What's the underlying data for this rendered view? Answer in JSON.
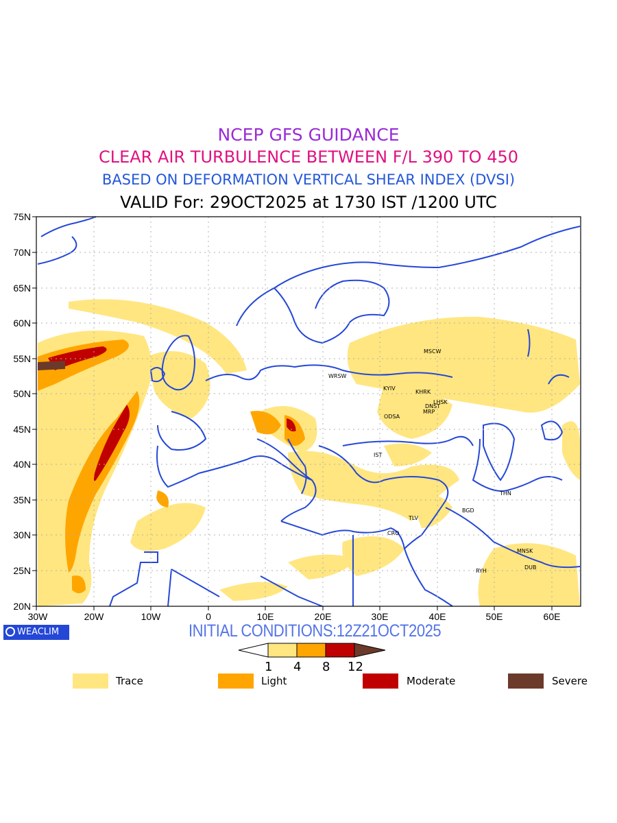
{
  "title_lines": {
    "line1": "NCEP GFS GUIDANCE",
    "line2": "CLEAR AIR TURBULENCE BETWEEN F/L 390 TO 450",
    "line3": "BASED ON DEFORMATION VERTICAL SHEAR INDEX (DVSI)",
    "line4": "VALID For: 29OCT2025 at 1730 IST /1200 UTC"
  },
  "lat_labels": [
    "75N",
    "70N",
    "65N",
    "60N",
    "55N",
    "50N",
    "45N",
    "40N",
    "35N",
    "30N",
    "25N",
    "20N"
  ],
  "lon_labels": [
    "30W",
    "20W",
    "10W",
    "0",
    "10E",
    "20E",
    "30E",
    "40E",
    "50E",
    "60E"
  ],
  "cities": [
    {
      "name": "MSCW"
    },
    {
      "name": "WRSW"
    },
    {
      "name": "KYIV"
    },
    {
      "name": "KHRK"
    },
    {
      "name": "LHSK"
    },
    {
      "name": "DNST"
    },
    {
      "name": "MRP"
    },
    {
      "name": "ODSA"
    },
    {
      "name": "IST"
    },
    {
      "name": "THN"
    },
    {
      "name": "BGD"
    },
    {
      "name": "TLV"
    },
    {
      "name": "CRO"
    },
    {
      "name": "MNSK"
    },
    {
      "name": "DUB"
    },
    {
      "name": "RYH"
    }
  ],
  "logo_text": "WEACLIM",
  "initial_conditions": "INITIAL CONDITIONS:12Z21OCT2025",
  "colorbar_ticks": [
    "1",
    "4",
    "8",
    "12"
  ],
  "legend": [
    {
      "label": "Trace",
      "color": "#ffe680"
    },
    {
      "label": "Light",
      "color": "#ffa500"
    },
    {
      "label": "Moderate",
      "color": "#c00000"
    },
    {
      "label": "Severe",
      "color": "#6b3a2a"
    }
  ],
  "colors": {
    "coastline": "#2447d6",
    "trace": "#ffe680",
    "light": "#ffa500",
    "moderate": "#c00000",
    "severe": "#6b3a2a"
  }
}
